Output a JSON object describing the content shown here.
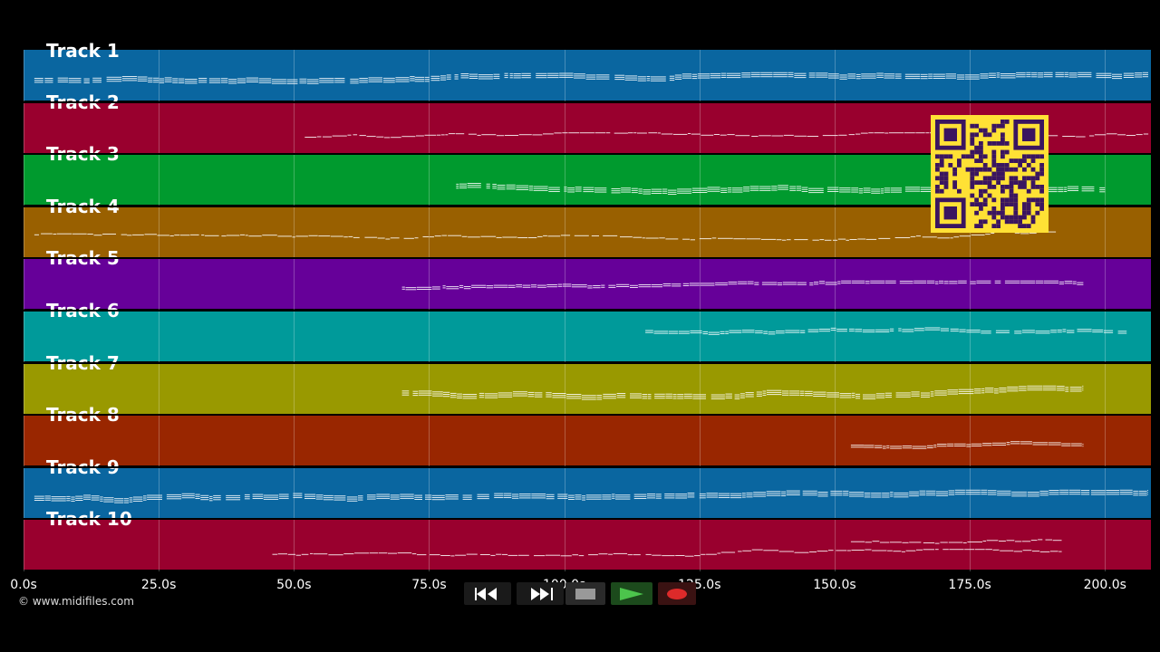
{
  "tracks": [
    {
      "label": "Track 1",
      "color": "#0a66a0"
    },
    {
      "label": "Track 2",
      "color": "#99002e"
    },
    {
      "label": "Track 3",
      "color": "#009a2e"
    },
    {
      "label": "Track 4",
      "color": "#996000"
    },
    {
      "label": "Track 5",
      "color": "#660099"
    },
    {
      "label": "Track 6",
      "color": "#009a9a"
    },
    {
      "label": "Track 7",
      "color": "#999900"
    },
    {
      "label": "Track 8",
      "color": "#992600"
    },
    {
      "label": "Track 9",
      "color": "#0a66a0"
    },
    {
      "label": "Track 10",
      "color": "#99002e"
    }
  ],
  "timeline": {
    "ticks": [
      "0.0s",
      "25.0s",
      "50.0s",
      "75.0s",
      "100.0s",
      "125.0s",
      "150.0s",
      "175.0s",
      "200.0s"
    ],
    "max_seconds": 208.5
  },
  "copyright": "© www.midifiles.com",
  "transport": {
    "rewind": "rewind-icon",
    "fast_forward": "fast-forward-icon",
    "stop": "stop-icon",
    "play": "play-icon",
    "record": "record-icon"
  },
  "overlay": {
    "qr_color": "#ffe135",
    "qr_dark": "#3a1560"
  }
}
